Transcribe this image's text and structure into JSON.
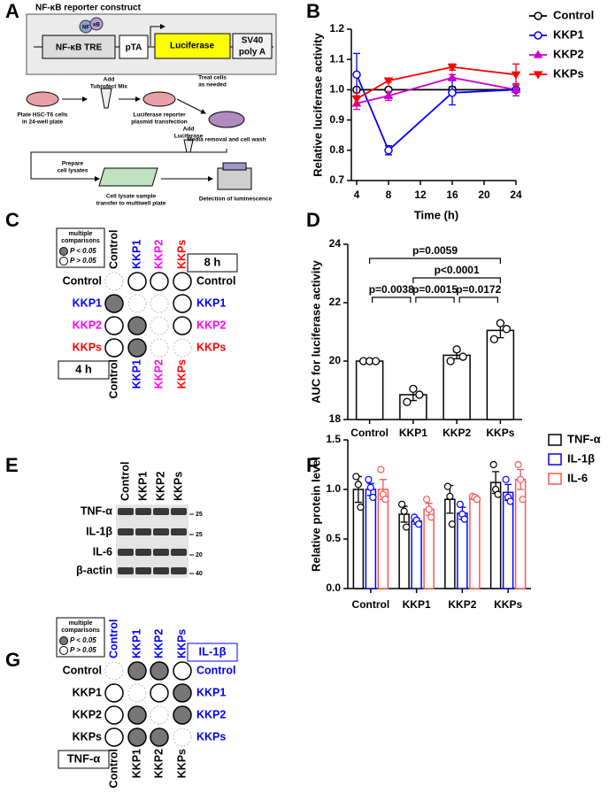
{
  "panel_labels": [
    "A",
    "B",
    "C",
    "D",
    "E",
    "F",
    "G"
  ],
  "construct": {
    "title": "NF-κB reporter construct",
    "nf": "NF",
    "kb": "κB",
    "tre": "NF-κB TRE",
    "pta": "pTA",
    "luciferase": "Luciferase",
    "sv40": [
      "SV40",
      "poly A"
    ]
  },
  "workflow": [
    [
      "Plate HSC-T6 cells",
      "in 24-well plate"
    ],
    [
      "Add",
      "Tubrofect Mix"
    ],
    [
      "Luciferase reporter",
      "plasmid transfection"
    ],
    [
      "Treat cells",
      "as needed"
    ],
    [
      "Media removal and cell wash"
    ],
    [
      "Prepare",
      "cell lysates"
    ],
    [
      "Cell lysate sample",
      "transfer to multiwell plate"
    ],
    [
      "Add",
      "Luciferase"
    ],
    [
      "Detection of luminescence"
    ]
  ],
  "chart_data": [
    {
      "type": "line",
      "xlabel": "Time (h)",
      "ylabel": "Relative luciferase activity",
      "x": [
        4,
        8,
        16,
        24
      ],
      "xlim": [
        4,
        24
      ],
      "xticks": [
        4,
        8,
        12,
        16,
        20,
        24
      ],
      "ylim": [
        0.7,
        1.2
      ],
      "yticks": [
        0.7,
        0.8,
        0.9,
        {
          "value": 1,
          "label": "1.0"
        },
        1.1,
        1.2
      ],
      "legend": "right",
      "series": [
        {
          "name": "Control",
          "color": "#000000",
          "marker": "circle",
          "values": [
            1,
            1,
            1,
            1
          ],
          "errors": [
            0.005,
            0.005,
            0.01,
            0.005
          ]
        },
        {
          "name": "KKP1",
          "color": "#0000ff",
          "marker": "circle",
          "values": [
            1.05,
            0.8,
            0.99,
            1.0
          ],
          "errors": [
            0.07,
            0.015,
            0.04,
            0.02
          ]
        },
        {
          "name": "KKP2",
          "color": "#cc00cc",
          "marker": "triangle-up",
          "values": [
            0.955,
            0.98,
            1.04,
            1.0
          ],
          "errors": [
            0.02,
            0.015,
            0.01,
            0.02
          ]
        },
        {
          "name": "KKPs",
          "color": "#ff0000",
          "marker": "triangle-down",
          "values": [
            0.97,
            1.03,
            1.075,
            1.05
          ],
          "errors": [
            0.02,
            0.005,
            0.01,
            0.035
          ]
        }
      ]
    },
    {
      "type": "bar",
      "ylabel": "AUC for luciferase activity",
      "categories": [
        "Control",
        "KKP1",
        "KKP2",
        "KKPs"
      ],
      "values": [
        20,
        18.85,
        20.2,
        21.05
      ],
      "errors": [
        0.02,
        0.2,
        0.12,
        0.25
      ],
      "points": [
        [
          20,
          20,
          20
        ],
        [
          18.6,
          19.05,
          18.85
        ],
        [
          20,
          20.4,
          20.15
        ],
        [
          20.75,
          21.3,
          21.1
        ]
      ],
      "color": "#000000",
      "ylim": [
        18,
        24
      ],
      "yticks": [
        18,
        20,
        22,
        24
      ],
      "comparisons": [
        {
          "between": [
            0,
            1
          ],
          "label": "p=0.0038"
        },
        {
          "between": [
            1,
            2
          ],
          "label": "p=0.0015"
        },
        {
          "between": [
            2,
            3
          ],
          "label": "p=0.0172"
        },
        {
          "between": [
            1,
            3
          ],
          "label": "p<0.0001"
        },
        {
          "between": [
            0,
            3
          ],
          "label": "p=0.0059"
        }
      ]
    },
    {
      "type": "grouped_bar",
      "ylabel": "Relative protein level",
      "categories": [
        "Control",
        "KKP1",
        "KKP2",
        "KKPs"
      ],
      "ylim": [
        0,
        1.5
      ],
      "yticks": [
        {
          "value": 0,
          "label": "0.0"
        },
        0.5,
        {
          "value": 1,
          "label": "1.0"
        },
        1.5
      ],
      "legend": "right",
      "series": [
        {
          "name": "TNF-α",
          "color": "#000000",
          "values": [
            1.0,
            0.75,
            0.9,
            1.07
          ],
          "errors": [
            0.13,
            0.08,
            0.14,
            0.11
          ],
          "points": [
            [
              1.13,
              1.05,
              0.82
            ],
            [
              0.85,
              0.78,
              0.62
            ],
            [
              1.03,
              0.93,
              0.65
            ],
            [
              1.25,
              1.0,
              0.95
            ]
          ]
        },
        {
          "name": "IL-1β",
          "color": "#0000ff",
          "values": [
            1.0,
            0.68,
            0.76,
            0.97
          ],
          "errors": [
            0.06,
            0.03,
            0.06,
            0.08
          ],
          "points": [
            [
              1.1,
              1.02,
              0.92
            ],
            [
              0.72,
              0.69,
              0.65
            ],
            [
              0.85,
              0.75,
              0.7
            ],
            [
              1.1,
              0.92,
              0.88
            ]
          ]
        },
        {
          "name": "IL-6",
          "color": "#ff5555",
          "values": [
            1.0,
            0.8,
            0.92,
            1.1
          ],
          "errors": [
            0.1,
            0.06,
            0.02,
            0.1
          ],
          "points": [
            [
              1.2,
              0.95,
              0.9
            ],
            [
              0.9,
              0.8,
              0.72
            ],
            [
              0.93,
              0.92,
              0.9
            ],
            [
              1.25,
              1.1,
              0.9
            ]
          ]
        }
      ]
    }
  ],
  "matrices": [
    {
      "legend": {
        "title": [
          "multiple",
          "comparisons"
        ],
        "sig": "P < 0.05",
        "ns": "P > 0.05"
      },
      "labels": [
        "Control",
        "KKP1",
        "KKP2",
        "KKPs"
      ],
      "upper_colors": [
        "#000000",
        "#0000ff",
        "#ff00ff",
        "#ff0000"
      ],
      "lower_colors": [
        "#000000",
        "#0000ff",
        "#ff00ff",
        "#ff0000"
      ],
      "upper_label": "8 h",
      "upper_label_color": "#000000",
      "lower_label": "4 h",
      "lower_label_color": "#000000",
      "cells": [
        [
          null,
          0,
          0,
          0
        ],
        [
          1,
          null,
          null,
          0
        ],
        [
          0,
          1,
          null,
          0
        ],
        [
          0,
          1,
          null,
          null
        ]
      ]
    },
    {
      "legend": {
        "title": [
          "multiple",
          "comparisons"
        ],
        "sig": "P < 0.05",
        "ns": "P > 0.05"
      },
      "labels": [
        "Control",
        "KKP1",
        "KKP2",
        "KKPs"
      ],
      "upper_colors": [
        "#0000ff",
        "#0000ff",
        "#0000ff",
        "#0000ff"
      ],
      "lower_colors": [
        "#000000",
        "#000000",
        "#000000",
        "#000000"
      ],
      "upper_label": "IL-1β",
      "upper_label_color": "#0000ff",
      "lower_label": "TNF-α",
      "lower_label_color": "#000000",
      "cells": [
        [
          null,
          1,
          1,
          0
        ],
        [
          0,
          null,
          0,
          1
        ],
        [
          0,
          1,
          null,
          1
        ],
        [
          0,
          1,
          1,
          null
        ]
      ]
    }
  ],
  "blot": {
    "lanes": [
      "Control",
      "KKP1",
      "KKP2",
      "KKPs"
    ],
    "proteins": [
      "TNF-α",
      "IL-1β",
      "IL-6",
      "β-actin"
    ],
    "markers": [
      25,
      25,
      20,
      40
    ]
  }
}
